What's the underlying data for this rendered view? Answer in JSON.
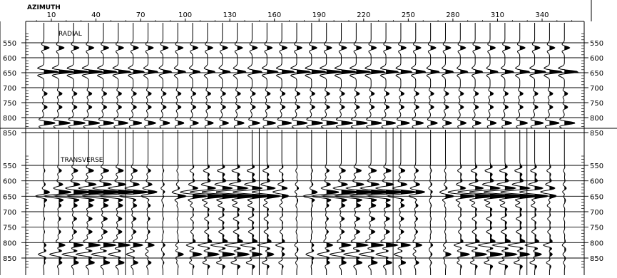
{
  "chart_data": [
    {
      "type": "seismic_wiggle",
      "axis_title": "AZIMUTH",
      "panel_label": "RADIAL",
      "x_ticks": [
        10,
        40,
        70,
        100,
        130,
        160,
        190,
        220,
        250,
        280,
        310,
        340
      ],
      "y_ticks": [
        550,
        600,
        650,
        700,
        750,
        800,
        850
      ],
      "trace_azimuths": [
        5,
        15,
        25,
        35,
        45,
        55,
        65,
        75,
        85,
        95,
        105,
        115,
        125,
        135,
        145,
        155,
        165,
        175,
        185,
        195,
        205,
        215,
        225,
        235,
        245,
        255,
        265,
        275,
        285,
        295,
        305,
        315,
        325,
        335,
        345,
        355
      ],
      "events": [
        {
          "time": 567,
          "amplitude": 0.4,
          "pattern": "radial_moderate"
        },
        {
          "time": 647,
          "amplitude": 0.95,
          "pattern": "radial_strong"
        },
        {
          "time": 720,
          "amplitude": 0.25,
          "pattern": "radial_moderate"
        },
        {
          "time": 765,
          "amplitude": 0.25,
          "pattern": "radial_moderate"
        },
        {
          "time": 818,
          "amplitude": 0.75,
          "pattern": "radial_strong"
        }
      ]
    },
    {
      "type": "seismic_wiggle",
      "panel_label": "TRANSVERSE",
      "x_ticks": [
        10,
        40,
        70,
        100,
        130,
        160,
        190,
        220,
        250,
        280,
        310,
        340
      ],
      "y_ticks": [
        550,
        600,
        650,
        700,
        750,
        800,
        850
      ],
      "trace_azimuths": [
        5,
        15,
        25,
        35,
        45,
        55,
        65,
        75,
        85,
        95,
        105,
        115,
        125,
        135,
        145,
        155,
        165,
        175,
        185,
        195,
        205,
        215,
        225,
        235,
        245,
        255,
        265,
        275,
        285,
        295,
        305,
        315,
        325,
        335,
        345,
        355
      ],
      "events": [
        {
          "time": 567,
          "amplitude": 0.35,
          "pattern": "transverse_a"
        },
        {
          "time": 612,
          "amplitude": 0.55,
          "pattern": "transverse_a"
        },
        {
          "time": 636,
          "amplitude": 1.0,
          "pattern": "transverse_b"
        },
        {
          "time": 650,
          "amplitude": 1.0,
          "pattern": "transverse_c"
        },
        {
          "time": 680,
          "amplitude": 0.3,
          "pattern": "transverse_a"
        },
        {
          "time": 723,
          "amplitude": 0.25,
          "pattern": "transverse_a"
        },
        {
          "time": 765,
          "amplitude": 0.25,
          "pattern": "transverse_a"
        },
        {
          "time": 808,
          "amplitude": 0.8,
          "pattern": "transverse_b"
        },
        {
          "time": 838,
          "amplitude": 0.8,
          "pattern": "transverse_c"
        },
        {
          "time": 865,
          "amplitude": 0.4,
          "pattern": "transverse_a"
        }
      ]
    }
  ]
}
